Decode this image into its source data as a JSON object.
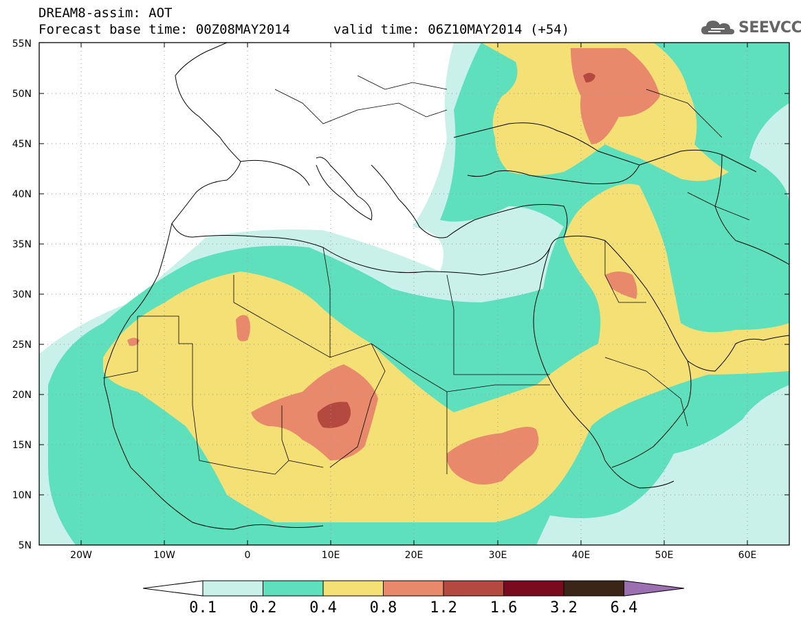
{
  "header": {
    "model_label": "DREAM8-assim: AOT",
    "base_time": "Forecast base time: 00Z08MAY2014",
    "valid_time": "valid time: 06Z10MAY2014 (+54)",
    "logo_text": "SEEVCCC"
  },
  "axes": {
    "lat_labels": [
      "55N",
      "50N",
      "45N",
      "40N",
      "35N",
      "30N",
      "25N",
      "20N",
      "15N",
      "10N",
      "5N"
    ],
    "lon_labels": [
      "20W",
      "10W",
      "0",
      "10E",
      "20E",
      "30E",
      "40E",
      "50E",
      "60E"
    ]
  },
  "colorbar": {
    "labels": [
      "0.1",
      "0.2",
      "0.4",
      "0.8",
      "1.2",
      "1.6",
      "3.2",
      "6.4"
    ],
    "colors": [
      "#c9f1ea",
      "#5ee0bd",
      "#f5e076",
      "#e7896a",
      "#b3493f",
      "#7a0b1f",
      "#3a2516",
      "#9b6fb0",
      "#ffffff"
    ]
  },
  "colors": {
    "c01": "#c9f1ea",
    "c02": "#5ee0bd",
    "c04": "#f5e076",
    "c08": "#e7896a",
    "c12": "#b3493f",
    "border": "#000000",
    "grid": "#888888"
  }
}
